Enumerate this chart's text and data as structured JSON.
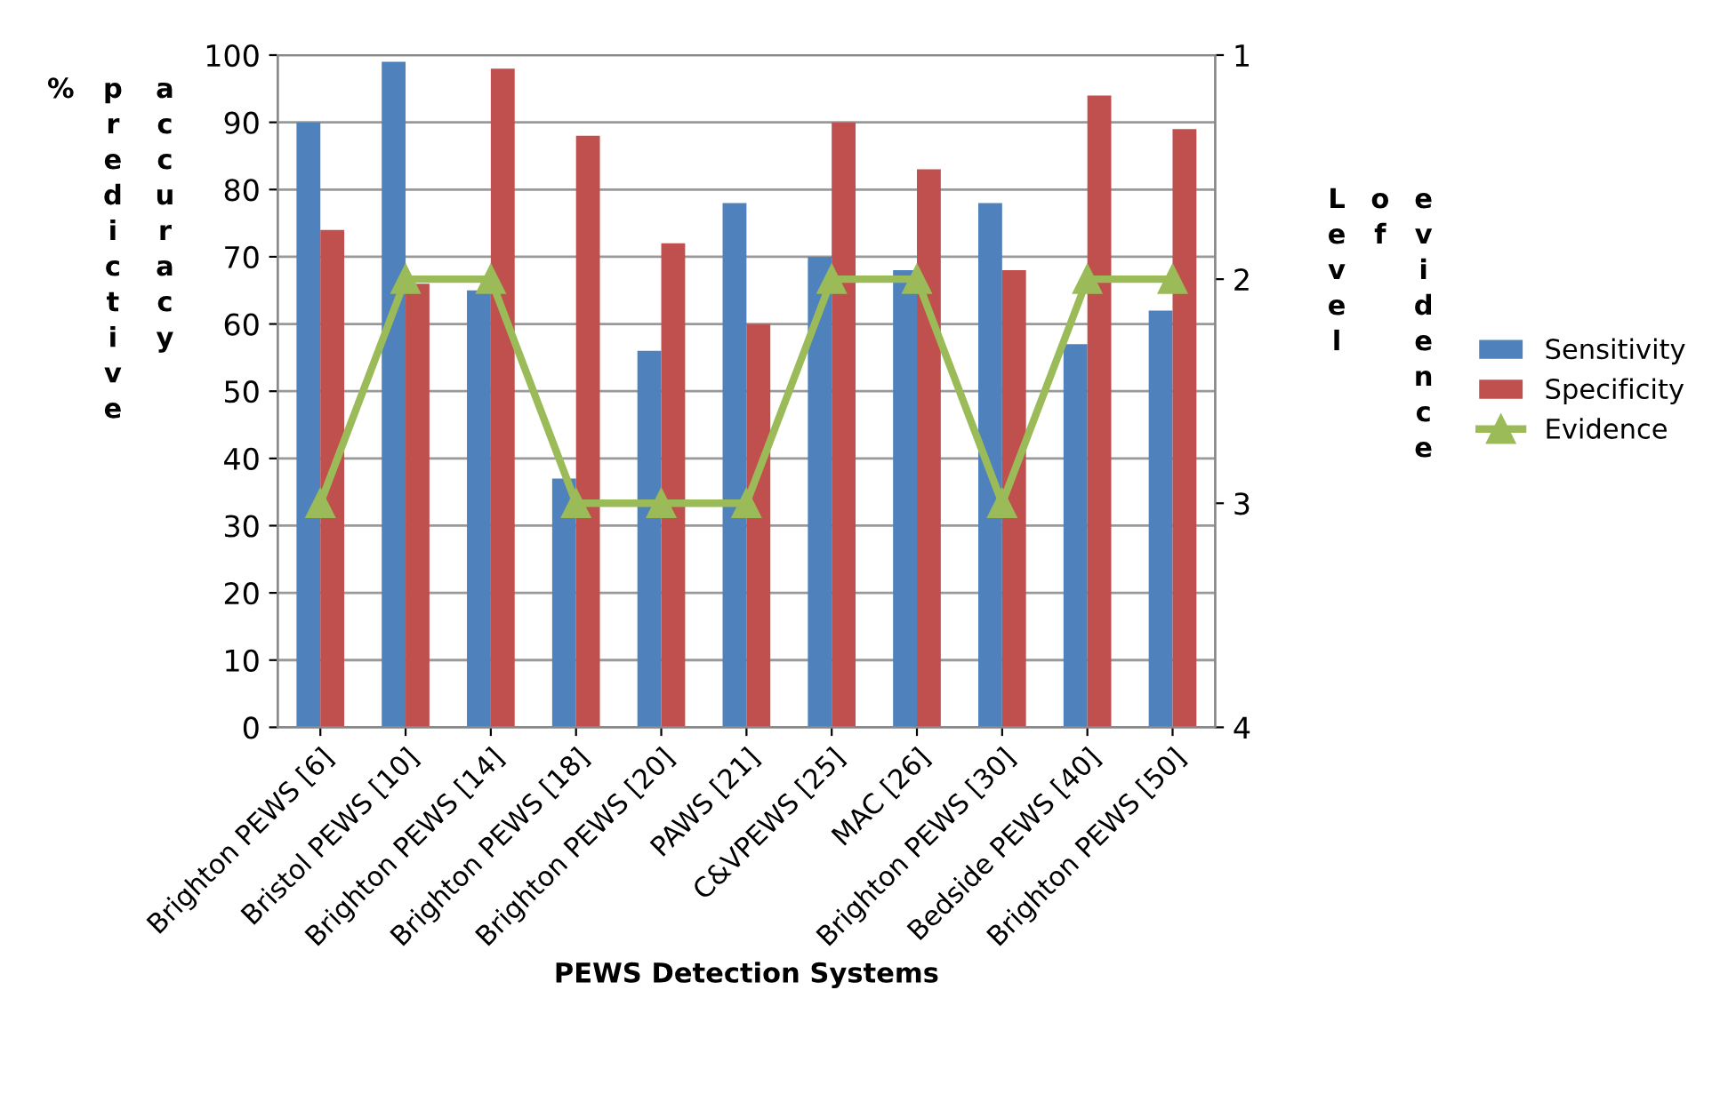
{
  "chart_data": {
    "type": "bar",
    "xlabel": "PEWS Detection Systems",
    "ylabel": "% predictive accuracy",
    "y2label": "Level of evidence",
    "categories": [
      "Brighton PEWS [6]",
      "Bristol PEWS [10]",
      "Brighton PEWS [14]",
      "Brighton PEWS [18]",
      "Brighton PEWS [20]",
      "PAWS [21]",
      "C&VPEWS [25]",
      "MAC [26]",
      "Brighton PEWS [30]",
      "Bedside PEWS [40]",
      "Brighton PEWS [50]"
    ],
    "series": [
      {
        "name": "Sensitivity",
        "color": "#4f81bd",
        "values": [
          90,
          99,
          65,
          37,
          56,
          78,
          70,
          68,
          78,
          57,
          62
        ]
      },
      {
        "name": "Specificity",
        "color": "#c0504d",
        "values": [
          74,
          66,
          98,
          88,
          72,
          60,
          90,
          83,
          68,
          94,
          89
        ]
      },
      {
        "name": "Evidence",
        "type": "line",
        "axis": "y2",
        "color": "#9bbb59",
        "marker": "triangle",
        "values": [
          3,
          2,
          2,
          3,
          3,
          3,
          2,
          2,
          3,
          2,
          2
        ]
      }
    ],
    "ylim": [
      0,
      100
    ],
    "yticks": [
      0,
      10,
      20,
      30,
      40,
      50,
      60,
      70,
      80,
      90,
      100
    ],
    "y2lim": [
      4,
      1
    ],
    "y2ticks": [
      1,
      2,
      3,
      4
    ],
    "grid": "y",
    "legend": "right"
  }
}
